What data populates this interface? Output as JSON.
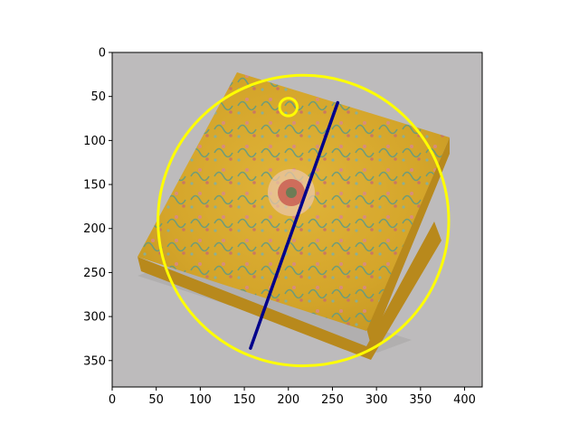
{
  "figure": {
    "background": "#ffffff",
    "image_description_colors": {
      "backdrop": "#bdbbbc",
      "cushion_main": "#d4a52a",
      "cushion_shadow": "#b8891c"
    }
  },
  "chart_data": {
    "type": "scatter",
    "title": "",
    "xlabel": "",
    "ylabel": "",
    "xlim": [
      0,
      420
    ],
    "ylim": [
      380,
      0
    ],
    "y_inverted": true,
    "grid": false,
    "x_ticks": [
      0,
      50,
      100,
      150,
      200,
      250,
      300,
      350,
      400
    ],
    "y_ticks": [
      0,
      50,
      100,
      150,
      200,
      250,
      300,
      350
    ],
    "overlays": [
      {
        "kind": "circle",
        "name": "large-circle",
        "cx": 217,
        "cy": 191,
        "r": 165,
        "color": "#ffff00"
      },
      {
        "kind": "circle",
        "name": "small-circle",
        "cx": 200,
        "cy": 62,
        "r": 10,
        "color": "#ffff00"
      },
      {
        "kind": "line",
        "name": "navy-line",
        "x": [
          157,
          256
        ],
        "y": [
          336,
          57
        ],
        "color": "#00008b"
      }
    ]
  }
}
